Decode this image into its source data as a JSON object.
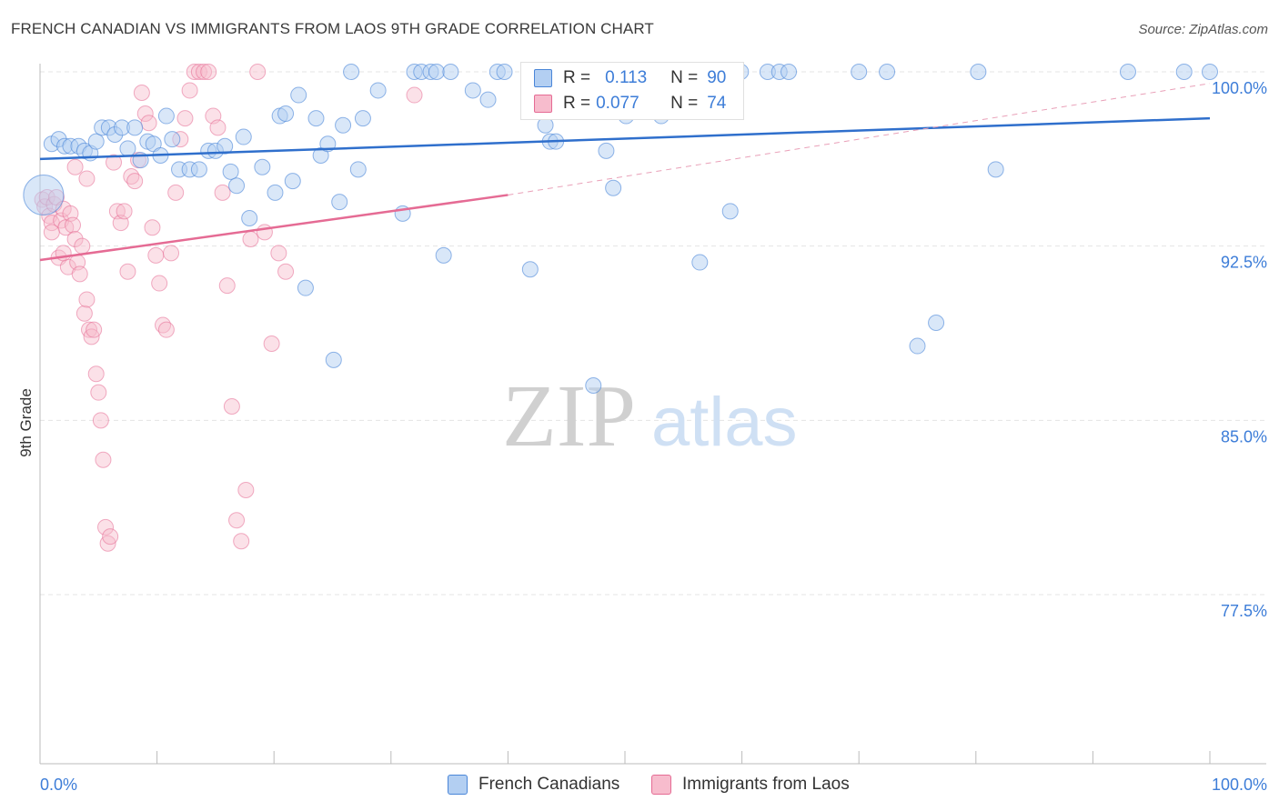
{
  "header": {
    "title": "FRENCH CANADIAN VS IMMIGRANTS FROM LAOS 9TH GRADE CORRELATION CHART",
    "source": "Source: ZipAtlas.com"
  },
  "watermark": {
    "zip": "ZIP",
    "atlas": "atlas"
  },
  "legend_box": {
    "rows": [
      {
        "r_label": "R =",
        "r_value": "0.113",
        "n_label": "N =",
        "n_value": "90"
      },
      {
        "r_label": "R =",
        "r_value": "0.077",
        "n_label": "N =",
        "n_value": "74"
      }
    ]
  },
  "chart_data": {
    "type": "scatter",
    "title": "FRENCH CANADIAN VS IMMIGRANTS FROM LAOS 9TH GRADE CORRELATION CHART",
    "xlabel": "",
    "ylabel": "9th Grade",
    "xlim": [
      0,
      100
    ],
    "ylim": [
      70,
      100.8
    ],
    "x_tick_labels": [
      "0.0%",
      "100.0%"
    ],
    "y_ticks": [
      100,
      92.5,
      85,
      77.5
    ],
    "y_tick_labels": [
      "100.0%",
      "92.5%",
      "85.0%",
      "77.5%"
    ],
    "grid": true,
    "legend_position": "bottom-center",
    "colors": {
      "blue": "#4a86d8",
      "blue_fill": "#b3cff2",
      "pink": "#e56b94",
      "pink_fill": "#f7bccd"
    },
    "series": [
      {
        "name": "French Canadians",
        "r": 0.113,
        "n": 90,
        "trend": {
          "x": [
            0,
            100
          ],
          "y": [
            96.25,
            98.0
          ]
        },
        "points": [
          [
            0.3,
            94.7
          ],
          [
            1.0,
            96.9
          ],
          [
            1.6,
            97.1
          ],
          [
            2.1,
            96.8
          ],
          [
            2.6,
            96.8
          ],
          [
            3.3,
            96.8
          ],
          [
            3.8,
            96.6
          ],
          [
            4.3,
            96.5
          ],
          [
            4.8,
            97.0
          ],
          [
            5.3,
            97.6
          ],
          [
            5.9,
            97.6
          ],
          [
            6.4,
            97.3
          ],
          [
            7.0,
            97.6
          ],
          [
            7.5,
            96.7
          ],
          [
            8.1,
            97.6
          ],
          [
            8.6,
            96.2
          ],
          [
            9.2,
            97.0
          ],
          [
            9.7,
            96.9
          ],
          [
            10.3,
            96.4
          ],
          [
            10.8,
            98.1
          ],
          [
            11.3,
            97.1
          ],
          [
            11.9,
            95.8
          ],
          [
            12.8,
            95.8
          ],
          [
            13.6,
            95.8
          ],
          [
            14.4,
            96.6
          ],
          [
            15.0,
            96.6
          ],
          [
            15.8,
            96.8
          ],
          [
            16.3,
            95.7
          ],
          [
            16.8,
            95.1
          ],
          [
            17.4,
            97.2
          ],
          [
            17.9,
            93.7
          ],
          [
            19.0,
            95.9
          ],
          [
            20.1,
            94.8
          ],
          [
            20.5,
            98.1
          ],
          [
            21.0,
            98.2
          ],
          [
            21.6,
            95.3
          ],
          [
            22.1,
            99.0
          ],
          [
            22.7,
            90.7
          ],
          [
            23.6,
            98.0
          ],
          [
            24.0,
            96.4
          ],
          [
            24.6,
            96.9
          ],
          [
            25.1,
            87.6
          ],
          [
            25.6,
            94.4
          ],
          [
            25.9,
            97.7
          ],
          [
            26.6,
            100.0
          ],
          [
            27.2,
            95.8
          ],
          [
            27.6,
            98.0
          ],
          [
            28.9,
            99.2
          ],
          [
            31.0,
            93.9
          ],
          [
            32.0,
            100.0
          ],
          [
            32.6,
            100.0
          ],
          [
            33.4,
            100.0
          ],
          [
            33.9,
            100.0
          ],
          [
            34.5,
            92.1
          ],
          [
            35.1,
            100.0
          ],
          [
            37.0,
            99.2
          ],
          [
            38.3,
            98.8
          ],
          [
            39.1,
            100.0
          ],
          [
            39.7,
            100.0
          ],
          [
            41.9,
            91.5
          ],
          [
            43.2,
            97.7
          ],
          [
            43.6,
            97.0
          ],
          [
            44.1,
            97.0
          ],
          [
            45.4,
            99.1
          ],
          [
            45.8,
            100.0
          ],
          [
            46.5,
            100.0
          ],
          [
            47.3,
            86.5
          ],
          [
            48.4,
            96.6
          ],
          [
            49.0,
            95.0
          ],
          [
            50.1,
            98.1
          ],
          [
            50.9,
            100.0
          ],
          [
            53.1,
            98.1
          ],
          [
            55.8,
            100.0
          ],
          [
            56.4,
            91.8
          ],
          [
            57.8,
            100.0
          ],
          [
            58.1,
            100.0
          ],
          [
            58.6,
            100.0
          ],
          [
            59.0,
            94.0
          ],
          [
            59.9,
            100.0
          ],
          [
            62.2,
            100.0
          ],
          [
            63.2,
            100.0
          ],
          [
            64.0,
            100.0
          ],
          [
            70.0,
            100.0
          ],
          [
            72.4,
            100.0
          ],
          [
            75.0,
            88.2
          ],
          [
            76.6,
            89.2
          ],
          [
            80.2,
            100.0
          ],
          [
            81.7,
            95.8
          ],
          [
            93.0,
            100.0
          ],
          [
            97.8,
            100.0
          ],
          [
            100.0,
            100.0
          ]
        ]
      },
      {
        "name": "Immigrants from Laos",
        "r": 0.077,
        "n": 74,
        "trend": {
          "x": [
            0,
            40
          ],
          "y": [
            91.9,
            94.7
          ]
        },
        "trend_extension": {
          "x": [
            40,
            100
          ],
          "y": [
            94.7,
            99.5
          ]
        },
        "points": [
          [
            0.2,
            94.5
          ],
          [
            0.4,
            94.2
          ],
          [
            0.6,
            94.6
          ],
          [
            0.8,
            93.8
          ],
          [
            1.0,
            93.5
          ],
          [
            1.2,
            94.3
          ],
          [
            1.4,
            94.6
          ],
          [
            1.6,
            92.0
          ],
          [
            1.8,
            93.6
          ],
          [
            2.0,
            94.1
          ],
          [
            2.2,
            93.3
          ],
          [
            2.4,
            91.6
          ],
          [
            2.6,
            93.9
          ],
          [
            2.8,
            93.4
          ],
          [
            3.0,
            92.8
          ],
          [
            3.2,
            91.8
          ],
          [
            3.4,
            91.3
          ],
          [
            3.6,
            92.5
          ],
          [
            3.8,
            89.6
          ],
          [
            4.0,
            90.2
          ],
          [
            4.2,
            88.9
          ],
          [
            4.4,
            88.6
          ],
          [
            4.6,
            88.9
          ],
          [
            4.8,
            87.0
          ],
          [
            5.0,
            86.2
          ],
          [
            5.2,
            85.0
          ],
          [
            5.4,
            83.3
          ],
          [
            5.6,
            80.4
          ],
          [
            5.8,
            79.7
          ],
          [
            6.0,
            80.0
          ],
          [
            6.3,
            96.1
          ],
          [
            6.6,
            94.0
          ],
          [
            6.9,
            93.5
          ],
          [
            7.2,
            94.0
          ],
          [
            7.5,
            91.4
          ],
          [
            7.8,
            95.5
          ],
          [
            8.1,
            95.3
          ],
          [
            8.4,
            96.2
          ],
          [
            8.7,
            99.1
          ],
          [
            9.0,
            98.2
          ],
          [
            9.3,
            97.8
          ],
          [
            9.6,
            93.3
          ],
          [
            9.9,
            92.1
          ],
          [
            10.2,
            90.9
          ],
          [
            10.5,
            89.1
          ],
          [
            10.8,
            88.9
          ],
          [
            11.2,
            92.2
          ],
          [
            11.6,
            94.8
          ],
          [
            12.0,
            97.1
          ],
          [
            12.4,
            98.0
          ],
          [
            12.8,
            99.2
          ],
          [
            13.2,
            100.0
          ],
          [
            13.6,
            100.0
          ],
          [
            14.0,
            100.0
          ],
          [
            14.4,
            100.0
          ],
          [
            14.8,
            98.1
          ],
          [
            15.2,
            97.6
          ],
          [
            15.6,
            94.8
          ],
          [
            16.0,
            90.8
          ],
          [
            16.4,
            85.6
          ],
          [
            16.8,
            80.7
          ],
          [
            17.2,
            79.8
          ],
          [
            17.6,
            82.0
          ],
          [
            18.0,
            92.8
          ],
          [
            18.6,
            100.0
          ],
          [
            19.2,
            93.1
          ],
          [
            19.8,
            88.3
          ],
          [
            20.4,
            92.2
          ],
          [
            21.0,
            91.4
          ],
          [
            32.0,
            99.0
          ],
          [
            1.0,
            93.1
          ],
          [
            2.0,
            92.2
          ],
          [
            3.0,
            95.9
          ],
          [
            4.0,
            95.4
          ]
        ]
      }
    ]
  },
  "bottom_legend": {
    "items": [
      {
        "label": "French Canadians"
      },
      {
        "label": "Immigrants from Laos"
      }
    ]
  }
}
